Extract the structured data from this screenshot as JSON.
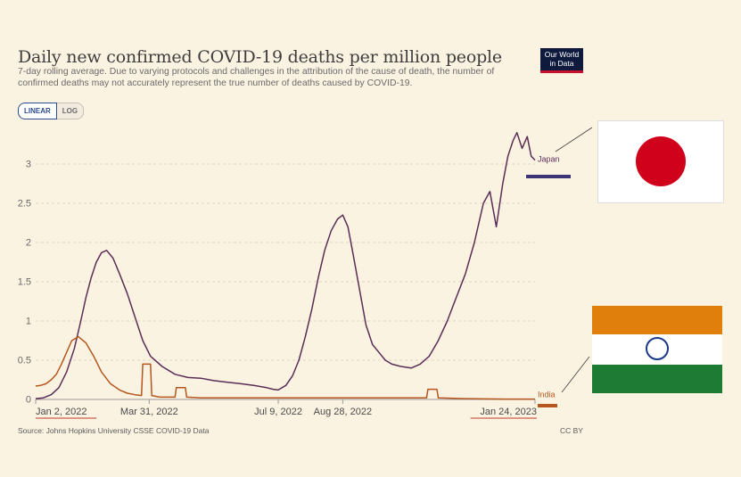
{
  "header": {
    "title": "Daily new confirmed COVID-19 deaths per million people",
    "subtitle": "7-day rolling average. Due to varying protocols and challenges in the attribution of the cause of death, the number of confirmed deaths may not accurately represent the true number of deaths caused by COVID-19.",
    "logo_line1": "Our World",
    "logo_line2": "in Data"
  },
  "scale_toggle": {
    "linear_label": "LINEAR",
    "log_label": "LOG",
    "selected": "LINEAR"
  },
  "footer": {
    "source": "Source: Johns Hopkins University CSSE COVID-19 Data",
    "license": "CC BY"
  },
  "colors": {
    "japan": "#5b2d56",
    "india": "#b5561e",
    "grid": "#dcd3c2",
    "background": "#fbf3e2"
  },
  "flags": {
    "japan": "japan-flag",
    "india": "india-flag"
  },
  "chart_data": {
    "type": "line",
    "title": "Daily new confirmed COVID-19 deaths per million people",
    "x_tick_labels": [
      "Jan 2, 2022",
      "Mar 31, 2022",
      "Jul 9, 2022",
      "Aug 28, 2022",
      "Jan 24, 2023"
    ],
    "x_ticks": [
      "2022-01-02",
      "2022-03-31",
      "2022-07-09",
      "2022-08-28",
      "2023-01-24"
    ],
    "y_ticks": [
      0,
      0.5,
      1,
      1.5,
      2,
      2.5,
      3
    ],
    "ylim": [
      0,
      3.5
    ],
    "xlim": [
      "2022-01-02",
      "2023-01-24"
    ],
    "grid": true,
    "series": [
      {
        "name": "Japan",
        "x": [
          "2022-01-02",
          "2022-01-08",
          "2022-01-14",
          "2022-01-20",
          "2022-01-26",
          "2022-02-01",
          "2022-02-06",
          "2022-02-10",
          "2022-02-14",
          "2022-02-18",
          "2022-02-22",
          "2022-02-26",
          "2022-03-03",
          "2022-03-08",
          "2022-03-14",
          "2022-03-20",
          "2022-03-26",
          "2022-04-01",
          "2022-04-10",
          "2022-04-20",
          "2022-04-30",
          "2022-05-10",
          "2022-05-20",
          "2022-05-30",
          "2022-06-10",
          "2022-06-20",
          "2022-06-30",
          "2022-07-05",
          "2022-07-09",
          "2022-07-15",
          "2022-07-20",
          "2022-07-25",
          "2022-07-30",
          "2022-08-04",
          "2022-08-09",
          "2022-08-14",
          "2022-08-19",
          "2022-08-24",
          "2022-08-28",
          "2022-09-01",
          "2022-09-05",
          "2022-09-10",
          "2022-09-15",
          "2022-09-20",
          "2022-09-25",
          "2022-09-30",
          "2022-10-05",
          "2022-10-12",
          "2022-10-20",
          "2022-10-27",
          "2022-11-03",
          "2022-11-10",
          "2022-11-17",
          "2022-11-24",
          "2022-12-01",
          "2022-12-08",
          "2022-12-15",
          "2022-12-20",
          "2022-12-25",
          "2022-12-30",
          "2023-01-03",
          "2023-01-07",
          "2023-01-10",
          "2023-01-14",
          "2023-01-18",
          "2023-01-21",
          "2023-01-24"
        ],
        "values": [
          0.01,
          0.02,
          0.06,
          0.15,
          0.35,
          0.65,
          1.0,
          1.3,
          1.55,
          1.75,
          1.87,
          1.9,
          1.8,
          1.6,
          1.35,
          1.05,
          0.75,
          0.55,
          0.42,
          0.32,
          0.28,
          0.27,
          0.24,
          0.22,
          0.2,
          0.18,
          0.15,
          0.13,
          0.12,
          0.18,
          0.3,
          0.5,
          0.8,
          1.15,
          1.55,
          1.9,
          2.15,
          2.3,
          2.35,
          2.2,
          1.85,
          1.4,
          0.95,
          0.7,
          0.6,
          0.5,
          0.45,
          0.42,
          0.4,
          0.45,
          0.55,
          0.75,
          1.0,
          1.3,
          1.6,
          2.0,
          2.5,
          2.65,
          2.2,
          2.75,
          3.1,
          3.3,
          3.4,
          3.2,
          3.35,
          3.1,
          3.05
        ]
      },
      {
        "name": "India",
        "x": [
          "2022-01-02",
          "2022-01-06",
          "2022-01-10",
          "2022-01-14",
          "2022-01-18",
          "2022-01-22",
          "2022-01-26",
          "2022-01-30",
          "2022-02-04",
          "2022-02-10",
          "2022-02-16",
          "2022-02-22",
          "2022-03-01",
          "2022-03-08",
          "2022-03-14",
          "2022-03-20",
          "2022-03-25",
          "2022-03-26",
          "2022-04-01",
          "2022-04-02",
          "2022-04-08",
          "2022-04-14",
          "2022-04-20",
          "2022-04-21",
          "2022-04-28",
          "2022-04-29",
          "2022-05-10",
          "2022-06-01",
          "2022-07-01",
          "2022-08-01",
          "2022-09-01",
          "2022-10-01",
          "2022-11-01",
          "2022-11-02",
          "2022-11-09",
          "2022-11-10",
          "2022-12-01",
          "2023-01-01",
          "2023-01-24"
        ],
        "values": [
          0.17,
          0.18,
          0.2,
          0.25,
          0.32,
          0.45,
          0.6,
          0.75,
          0.8,
          0.72,
          0.55,
          0.35,
          0.2,
          0.12,
          0.08,
          0.06,
          0.05,
          0.45,
          0.45,
          0.05,
          0.03,
          0.03,
          0.03,
          0.15,
          0.15,
          0.03,
          0.02,
          0.02,
          0.02,
          0.02,
          0.02,
          0.02,
          0.02,
          0.13,
          0.13,
          0.02,
          0.01,
          0.005,
          0.005
        ]
      }
    ],
    "end_labels": [
      "Japan",
      "India"
    ]
  }
}
